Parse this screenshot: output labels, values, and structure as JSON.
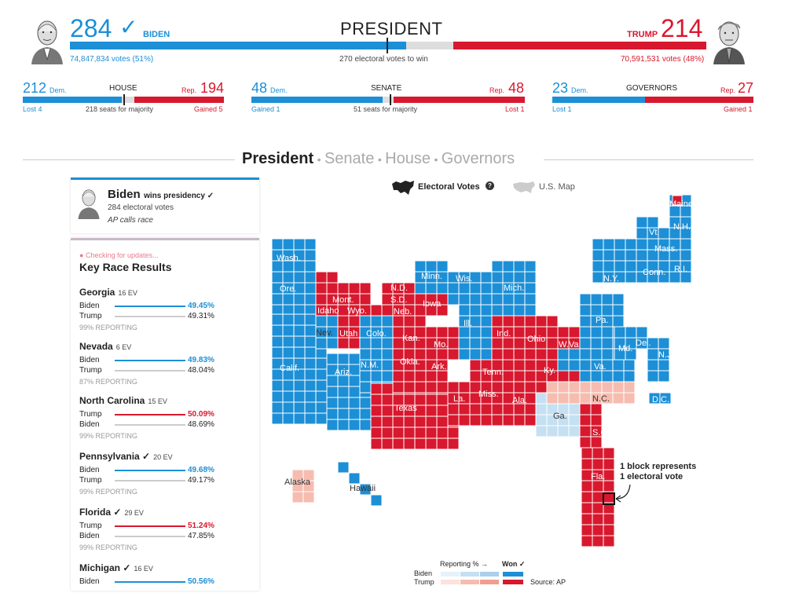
{
  "header": {
    "biden_ev": "284",
    "biden_check": "✓",
    "biden_name": "BIDEN",
    "biden_votes": "74,847,834 votes (51%)",
    "title": "PRESIDENT",
    "threshold": "270 electoral votes to win",
    "trump_name": "TRUMP",
    "trump_ev": "214",
    "trump_votes": "70,591,531 votes (48%)"
  },
  "chambers": [
    {
      "dem": "212",
      "dem_label": "Dem.",
      "name": "HOUSE",
      "rep_label": "Rep.",
      "rep": "194",
      "left_note": "Lost 4",
      "mid_note": "218 seats for majority",
      "right_note": "Gained 5"
    },
    {
      "dem": "48",
      "dem_label": "Dem.",
      "name": "SENATE",
      "rep_label": "Rep.",
      "rep": "48",
      "left_note": "Gained 1",
      "mid_note": "51 seats for majority",
      "right_note": "Lost 1"
    },
    {
      "dem": "23",
      "dem_label": "Dem.",
      "name": "GOVERNORS",
      "rep_label": "Rep.",
      "rep": "27",
      "left_note": "Lost 1",
      "mid_note": "",
      "right_note": "Gained 1"
    }
  ],
  "tabs": {
    "president": "President",
    "senate": "Senate",
    "house": "House",
    "governors": "Governors",
    "sep": "•"
  },
  "winner_card": {
    "name": "Biden",
    "wins": "wins presidency ✓",
    "ev": "284 electoral votes",
    "call": "AP calls race"
  },
  "key_races": {
    "status": "Checking for updates...",
    "title": "Key Race Results",
    "races": [
      {
        "state": "Georgia",
        "ev": "16 EV",
        "c1": "Biden",
        "p1": "49.45%",
        "c2": "Trump",
        "p2": "49.31%",
        "rep": "99% REPORTING"
      },
      {
        "state": "Nevada",
        "ev": "6 EV",
        "c1": "Biden",
        "p1": "49.83%",
        "c2": "Trump",
        "p2": "48.04%",
        "rep": "87% REPORTING"
      },
      {
        "state": "North Carolina",
        "ev": "15 EV",
        "c1": "Trump",
        "p1": "50.09%",
        "c2": "Biden",
        "p2": "48.69%",
        "rep": "99% REPORTING"
      },
      {
        "state": "Pennsylvania ✓",
        "ev": "20 EV",
        "c1": "Biden",
        "p1": "49.68%",
        "c2": "Trump",
        "p2": "49.17%",
        "rep": "99% REPORTING"
      },
      {
        "state": "Florida ✓",
        "ev": "29 EV",
        "c1": "Trump",
        "p1": "51.24%",
        "c2": "Biden",
        "p2": "47.85%",
        "rep": "99% REPORTING"
      },
      {
        "state": "Michigan ✓",
        "ev": "16 EV",
        "c1": "Biden",
        "p1": "50.56%",
        "c2": "",
        "p2": "",
        "rep": ""
      }
    ]
  },
  "map": {
    "toggle_ev": "Electoral Votes",
    "toggle_us": "U.S. Map",
    "help": "?",
    "note_line1": "1 block represents",
    "note_line2": "1 electoral vote",
    "states": [
      "Wash.",
      "Ore.",
      "Calif.",
      "Nev.",
      "Idaho",
      "Utah",
      "Ariz.",
      "Mont.",
      "Wyo.",
      "Colo.",
      "N.M.",
      "N.D.",
      "S.D.",
      "Neb.",
      "Kan.",
      "Okla.",
      "Texas",
      "Minn.",
      "Iowa",
      "Mo.",
      "Ark.",
      "La.",
      "Wis.",
      "Ill.",
      "Mich.",
      "Ind.",
      "Ohio",
      "Ky.",
      "Tenn.",
      "Miss.",
      "Ala.",
      "Ga.",
      "Fla.",
      "S.C.",
      "N.C.",
      "Va.",
      "W.Va.",
      "Pa.",
      "N.Y.",
      "Md.",
      "Del.",
      "N.J.",
      "Conn.",
      "R.I.",
      "Mass.",
      "Vt.",
      "N.H.",
      "Maine",
      "D.C.",
      "Alaska",
      "Hawaii"
    ]
  },
  "legend": {
    "reporting": "Reporting % →",
    "won": "Won ✓",
    "biden": "Biden",
    "trump": "Trump",
    "source": "Source: AP"
  },
  "colors": {
    "dem": "#1c8fd6",
    "rep": "#d8182e",
    "dem_light": "#c5e0f2",
    "rep_light": "#f6bcb0",
    "undecided": "#ddd"
  }
}
